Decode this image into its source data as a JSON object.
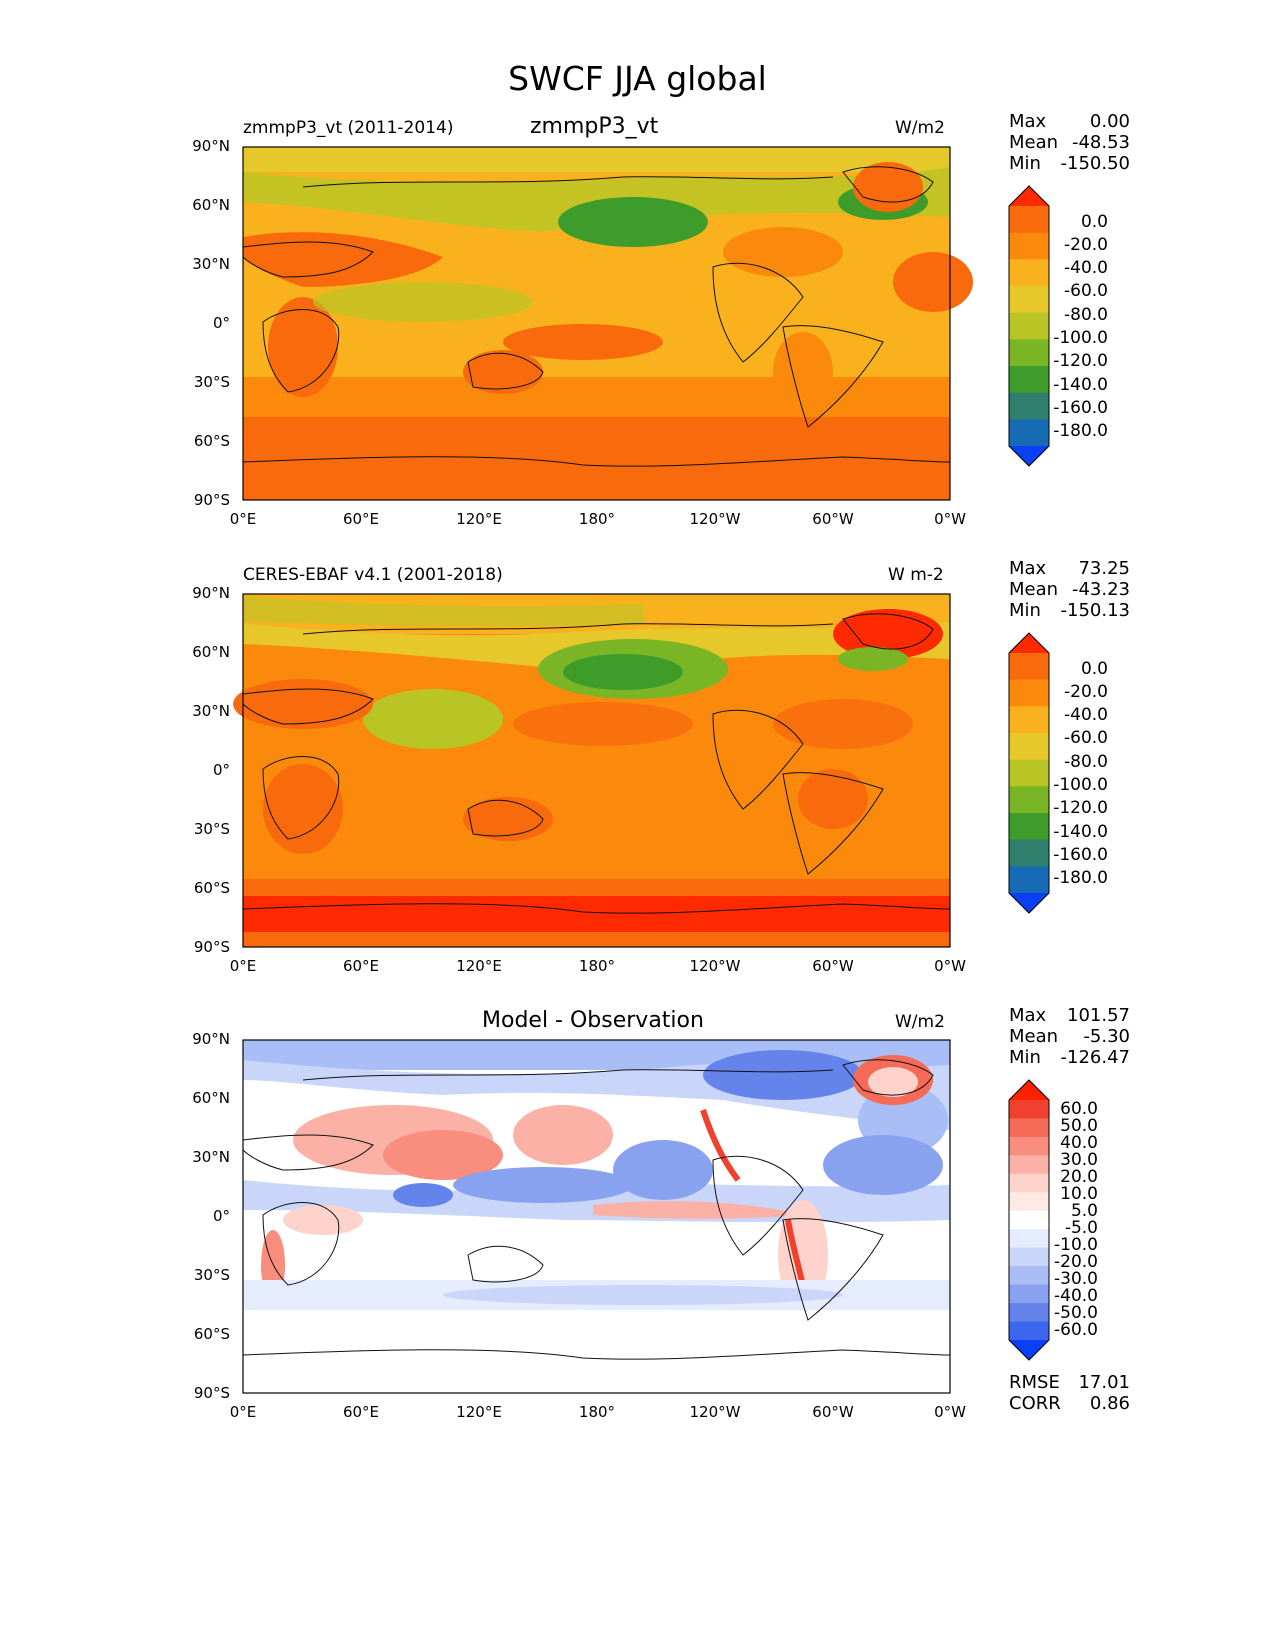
{
  "figure": {
    "title": "SWCF JJA global"
  },
  "axes": {
    "lat_labels": [
      "90°N",
      "60°N",
      "30°N",
      "0°",
      "30°S",
      "60°S",
      "90°S"
    ],
    "lon_labels": [
      "0°E",
      "60°E",
      "120°E",
      "180°",
      "120°W",
      "60°W",
      "0°W"
    ]
  },
  "panels": [
    {
      "left_title": "zmmpP3_vt (2011-2014)",
      "center_title": "zmmpP3_vt",
      "units": "W/m2",
      "stats": {
        "max_label": "Max",
        "max": "0.00",
        "mean_label": "Mean",
        "mean": "-48.53",
        "min_label": "Min",
        "min": "-150.50"
      },
      "colorbar": {
        "levels": [
          "0.0",
          "-20.0",
          "-40.0",
          "-60.0",
          "-80.0",
          "-100.0",
          "-120.0",
          "-140.0",
          "-160.0",
          "-180.0"
        ],
        "colors": [
          "#ff2a00",
          "#f86a0c",
          "#fb8a0c",
          "#f9b21e",
          "#e6c82a",
          "#b8c524",
          "#7ab525",
          "#3e9d2a",
          "#2f7f6d",
          "#176bb5",
          "#0a3ff5"
        ]
      }
    },
    {
      "left_title": "CERES-EBAF v4.1 (2001-2018)",
      "center_title": "",
      "units": "W m-2",
      "stats": {
        "max_label": "Max",
        "max": "73.25",
        "mean_label": "Mean",
        "mean": "-43.23",
        "min_label": "Min",
        "min": "-150.13"
      },
      "colorbar": {
        "levels": [
          "0.0",
          "-20.0",
          "-40.0",
          "-60.0",
          "-80.0",
          "-100.0",
          "-120.0",
          "-140.0",
          "-160.0",
          "-180.0"
        ],
        "colors": [
          "#ff2a00",
          "#f86a0c",
          "#fb8a0c",
          "#f9b21e",
          "#e6c82a",
          "#b8c524",
          "#7ab525",
          "#3e9d2a",
          "#2f7f6d",
          "#176bb5",
          "#0a3ff5"
        ]
      }
    },
    {
      "left_title": "",
      "center_title": "Model - Observation",
      "units": "W/m2",
      "stats": {
        "max_label": "Max",
        "max": "101.57",
        "mean_label": "Mean",
        "mean": "-5.30",
        "min_label": "Min",
        "min": "-126.47"
      },
      "extra_stats": {
        "rmse_label": "RMSE",
        "rmse": "17.01",
        "corr_label": "CORR",
        "corr": "0.86"
      },
      "colorbar": {
        "levels": [
          "60.0",
          "50.0",
          "40.0",
          "30.0",
          "20.0",
          "10.0",
          "5.0",
          "-5.0",
          "-10.0",
          "-20.0",
          "-30.0",
          "-40.0",
          "-50.0",
          "-60.0"
        ],
        "colors": [
          "#ff2200",
          "#f2402e",
          "#f66a58",
          "#f98d7e",
          "#fbb1a5",
          "#fdd3cb",
          "#fdeae5",
          "#ffffff",
          "#e5ecfd",
          "#c9d6fa",
          "#a9bdf6",
          "#88a2f0",
          "#6584eb",
          "#3d66ef",
          "#0a3ff5"
        ]
      }
    }
  ]
}
